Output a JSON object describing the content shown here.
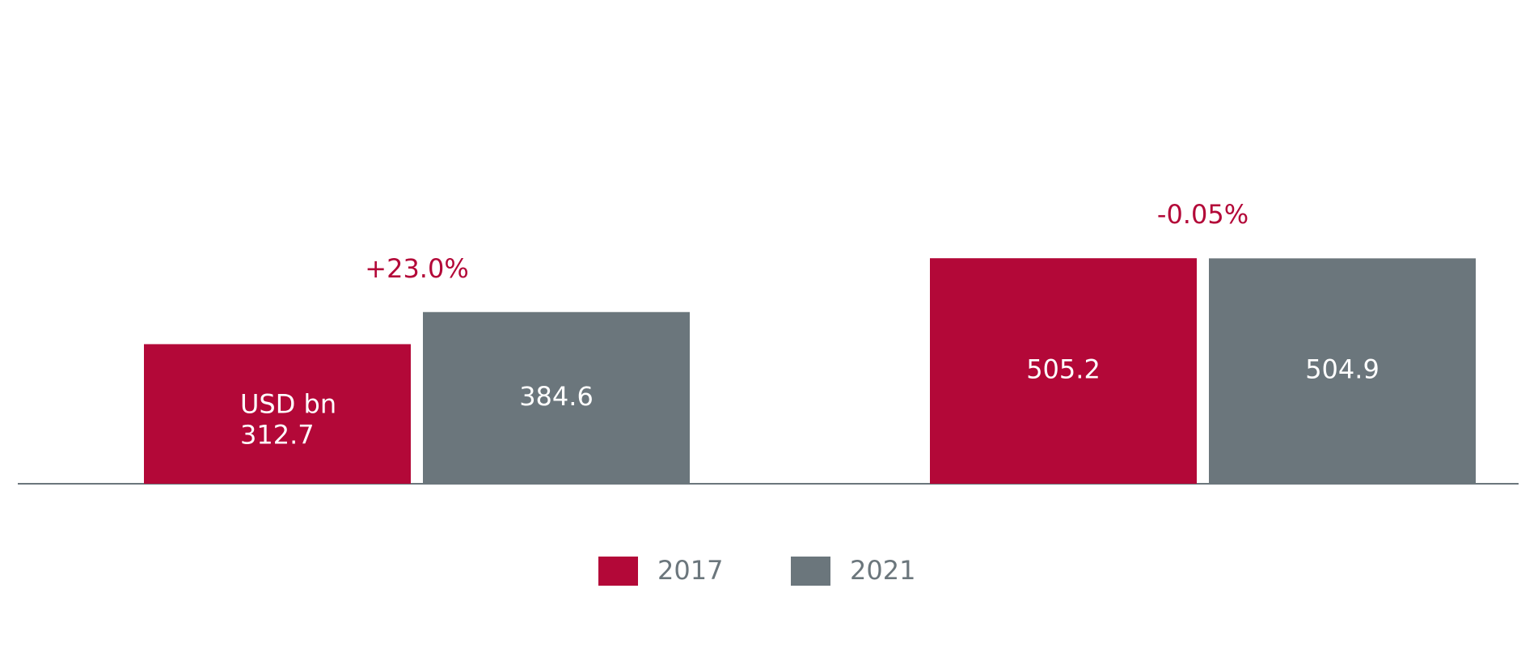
{
  "chart_data": {
    "type": "bar",
    "categories": [
      null,
      null
    ],
    "series": [
      {
        "name": "2017",
        "color": "#b30838",
        "values": [
          312.7,
          505.2
        ]
      },
      {
        "name": "2021",
        "color": "#6b767c",
        "values": [
          384.6,
          504.9
        ]
      }
    ],
    "unit_label": "USD bn",
    "annotations": [
      "+23.0%",
      "-0.05%"
    ],
    "annotation_color": "#b30838",
    "ylim": [
      0,
      1080
    ],
    "legend": "bottom"
  }
}
